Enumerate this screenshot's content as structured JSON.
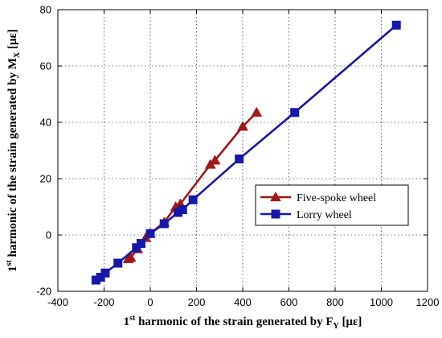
{
  "chart_data": {
    "type": "line",
    "xlabel": {
      "lead": "1",
      "sup": "st",
      "main": " harmonic of the strain generated by F",
      "sub": "Y",
      "unit": " [με]"
    },
    "ylabel": {
      "lead": "1",
      "sup": "st",
      "main": " harmonic of the strain generated by M",
      "sub": "X",
      "unit": " [με]"
    },
    "xlim": [
      -400,
      1200
    ],
    "ylim": [
      -20,
      80
    ],
    "xticks": [
      -400,
      -200,
      0,
      200,
      400,
      600,
      800,
      1000,
      1200
    ],
    "yticks": [
      -20,
      0,
      20,
      40,
      60,
      80
    ],
    "grid": true,
    "legend_position": "center-right",
    "series": [
      {
        "name": "Five-spoke wheel",
        "color": "#a01818",
        "marker": "triangle",
        "points": [
          [
            -95,
            -8.5
          ],
          [
            -85,
            -8
          ],
          [
            -55,
            -5
          ],
          [
            -20,
            -1
          ],
          [
            0,
            0.5
          ],
          [
            60,
            4.5
          ],
          [
            110,
            10
          ],
          [
            130,
            11
          ],
          [
            260,
            25
          ],
          [
            280,
            26.5
          ],
          [
            400,
            38.5
          ],
          [
            460,
            43.5
          ]
        ]
      },
      {
        "name": "Lorry wheel",
        "color": "#1818a8",
        "marker": "square",
        "points": [
          [
            -235,
            -16
          ],
          [
            -215,
            -15
          ],
          [
            -195,
            -13.5
          ],
          [
            -140,
            -10
          ],
          [
            -60,
            -4.5
          ],
          [
            -40,
            -3
          ],
          [
            0,
            0.5
          ],
          [
            60,
            4
          ],
          [
            120,
            8
          ],
          [
            140,
            9
          ],
          [
            185,
            12.5
          ],
          [
            385,
            27
          ],
          [
            625,
            43.5
          ],
          [
            1065,
            74.5
          ]
        ]
      }
    ]
  }
}
